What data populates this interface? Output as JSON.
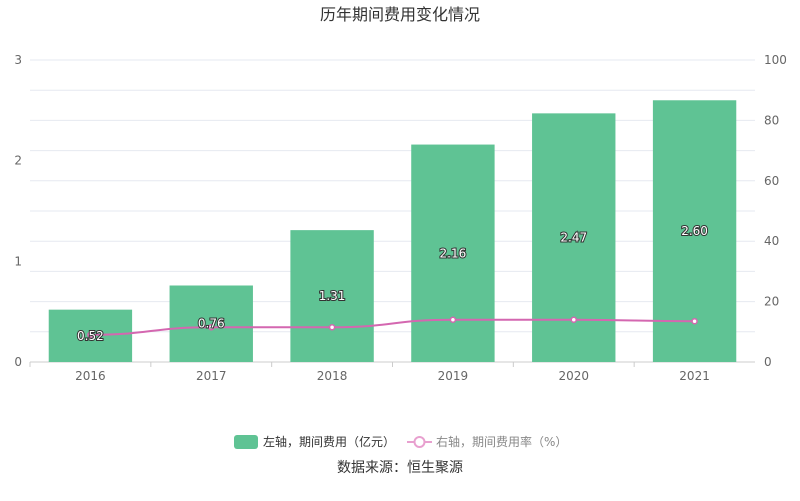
{
  "chart_data": {
    "type": "bar",
    "title": "历年期间费用变化情况",
    "categories": [
      "2016",
      "2017",
      "2018",
      "2019",
      "2020",
      "2021"
    ],
    "series": [
      {
        "name": "左轴，期间费用（亿元）",
        "type": "bar",
        "axis": "left",
        "values": [
          0.52,
          0.76,
          1.31,
          2.16,
          2.47,
          2.6
        ],
        "labels": [
          "0.52",
          "0.76",
          "1.31",
          "2.16",
          "2.47",
          "2.60"
        ],
        "color": "#5fc394"
      },
      {
        "name": "右轴，期间费用率（%）",
        "type": "line",
        "axis": "right",
        "values": [
          9.0,
          11.5,
          11.5,
          14.0,
          14.0,
          13.5
        ],
        "color": "#d467b0"
      }
    ],
    "yaxis_left": {
      "min": 0,
      "max": 3,
      "ticks": [
        "0",
        "1",
        "2",
        "3"
      ]
    },
    "yaxis_right": {
      "min": 0,
      "max": 100,
      "ticks": [
        "0",
        "20",
        "40",
        "60",
        "80",
        "100"
      ]
    },
    "grid": true,
    "legend_position": "bottom"
  },
  "source": "数据来源：恒生聚源"
}
